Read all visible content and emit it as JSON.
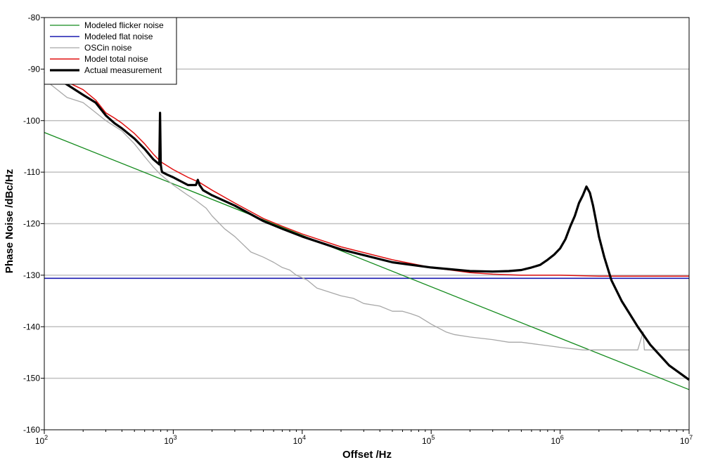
{
  "chart_data": {
    "type": "line",
    "title": "",
    "xlabel": "Offset /Hz",
    "ylabel": "Phase Noise /dBc/Hz",
    "x_scale": "log",
    "xlim": [
      100,
      10000000
    ],
    "ylim": [
      -160,
      -80
    ],
    "y_ticks": [
      -160,
      -150,
      -140,
      -130,
      -120,
      -110,
      -100,
      -90,
      -80
    ],
    "x_ticks": [
      {
        "value": 100,
        "base": "10",
        "exp": "2"
      },
      {
        "value": 1000,
        "base": "10",
        "exp": "3"
      },
      {
        "value": 10000,
        "base": "10",
        "exp": "4"
      },
      {
        "value": 100000,
        "base": "10",
        "exp": "5"
      },
      {
        "value": 1000000,
        "base": "10",
        "exp": "6"
      },
      {
        "value": 10000000,
        "base": "10",
        "exp": "7"
      }
    ],
    "grid": {
      "horizontal": true,
      "vertical": false,
      "color": "#c0c0c0"
    },
    "legend_position": "top-left",
    "series": [
      {
        "name": "Modeled flicker noise",
        "color": "#138a1c",
        "width": 1.3,
        "x": [
          100,
          10000000
        ],
        "y": [
          -102.3,
          -152.2
        ]
      },
      {
        "name": "Modeled flat noise",
        "color": "#1a1ab0",
        "width": 1.6,
        "x": [
          100,
          10000000
        ],
        "y": [
          -130.6,
          -130.6
        ]
      },
      {
        "name": "OSCin noise",
        "color": "#a8a8a8",
        "width": 1.3,
        "x": [
          100,
          150,
          200,
          300,
          400,
          500,
          600,
          700,
          800,
          1000,
          1300,
          1500,
          1800,
          2000,
          2500,
          3000,
          4000,
          5000,
          6000,
          7000,
          8000,
          9000,
          10000,
          11000,
          13000,
          15000,
          20000,
          25000,
          30000,
          40000,
          50000,
          60000,
          70000,
          80000,
          100000,
          130000,
          150000,
          200000,
          300000,
          400000,
          500000,
          700000,
          1000000,
          1500000,
          2000000,
          3000000,
          4000000,
          4400000,
          4500000,
          5000000,
          7000000,
          10000000
        ],
        "y": [
          -92,
          -95.5,
          -96.5,
          -100,
          -102,
          -104.5,
          -107,
          -109,
          -110.5,
          -112.5,
          -114.5,
          -115.5,
          -117,
          -118.5,
          -121,
          -122.5,
          -125.5,
          -126.5,
          -127.5,
          -128.5,
          -129,
          -130,
          -130.5,
          -131,
          -132.5,
          -133,
          -134,
          -134.5,
          -135.5,
          -136,
          -137,
          -137,
          -137.5,
          -138,
          -139.5,
          -141,
          -141.5,
          -142,
          -142.5,
          -143,
          -143,
          -143.5,
          -144,
          -144.5,
          -144.5,
          -144.5,
          -144.5,
          -141,
          -144.5,
          -144.5,
          -144.5,
          -144.5
        ]
      },
      {
        "name": "Model total noise",
        "color": "#e01010",
        "width": 1.5,
        "x": [
          100,
          150,
          200,
          250,
          300,
          350,
          400,
          500,
          600,
          700,
          800,
          1000,
          1300,
          1600,
          2000,
          3000,
          5000,
          7000,
          10000,
          20000,
          50000,
          100000,
          200000,
          300000,
          500000,
          1000000,
          2000000,
          5000000,
          10000000
        ],
        "y": [
          -90.5,
          -92.5,
          -94,
          -96,
          -98.5,
          -99.5,
          -100.5,
          -102.5,
          -104.5,
          -106.5,
          -108,
          -109.5,
          -111,
          -112,
          -113.5,
          -116,
          -119,
          -120.5,
          -122,
          -124.5,
          -127,
          -128.5,
          -129.5,
          -129.8,
          -130,
          -130,
          -130.2,
          -130.2,
          -130.2
        ]
      },
      {
        "name": "Actual measurement",
        "color": "#000000",
        "width": 3.2,
        "x": [
          100,
          150,
          200,
          250,
          300,
          350,
          400,
          500,
          600,
          700,
          780,
          790,
          800,
          810,
          820,
          900,
          1000,
          1300,
          1500,
          1550,
          1600,
          1650,
          1700,
          2000,
          3000,
          5000,
          7000,
          10000,
          20000,
          50000,
          100000,
          200000,
          300000,
          400000,
          500000,
          600000,
          700000,
          800000,
          900000,
          1000000,
          1100000,
          1200000,
          1300000,
          1400000,
          1500000,
          1600000,
          1700000,
          1800000,
          1900000,
          2000000,
          2200000,
          2500000,
          3000000,
          4000000,
          5000000,
          7000000,
          10000000
        ],
        "y": [
          -90.5,
          -93,
          -95,
          -96.5,
          -99,
          -100.5,
          -101.5,
          -103.5,
          -105.5,
          -107.5,
          -108.5,
          -98.5,
          -108.5,
          -109.5,
          -110,
          -110.5,
          -111,
          -112.5,
          -112.5,
          -111.5,
          -112.5,
          -113,
          -113.5,
          -114.5,
          -116.5,
          -119.5,
          -121,
          -122.5,
          -125,
          -127.5,
          -128.5,
          -129.2,
          -129.3,
          -129.2,
          -129,
          -128.5,
          -128,
          -127,
          -126,
          -124.8,
          -123,
          -120.5,
          -118.5,
          -116,
          -114.5,
          -112.8,
          -114,
          -116.5,
          -119.5,
          -122.5,
          -126.5,
          -131,
          -135,
          -140,
          -143.5,
          -147.5,
          -150.3
        ]
      }
    ]
  }
}
